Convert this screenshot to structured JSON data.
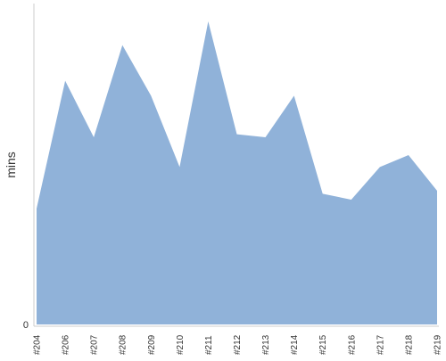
{
  "chart_data": {
    "type": "area",
    "categories": [
      "#204",
      "#206",
      "#207",
      "#208",
      "#209",
      "#210",
      "#211",
      "#212",
      "#213",
      "#214",
      "#215",
      "#216",
      "#217",
      "#218",
      "#219"
    ],
    "series": [
      {
        "values": [
          39,
          82,
          63,
          94,
          77,
          53,
          102,
          64,
          63,
          77,
          44,
          42,
          53,
          57,
          45
        ]
      }
    ],
    "ylabel": "mins",
    "y_tick_labels": [
      "0"
    ],
    "ylim": [
      0,
      108
    ],
    "grid": false,
    "legend": "none",
    "colors": {
      "area_fill": "#90b2d9",
      "axis": "#cccccc",
      "text": "#333333"
    }
  }
}
